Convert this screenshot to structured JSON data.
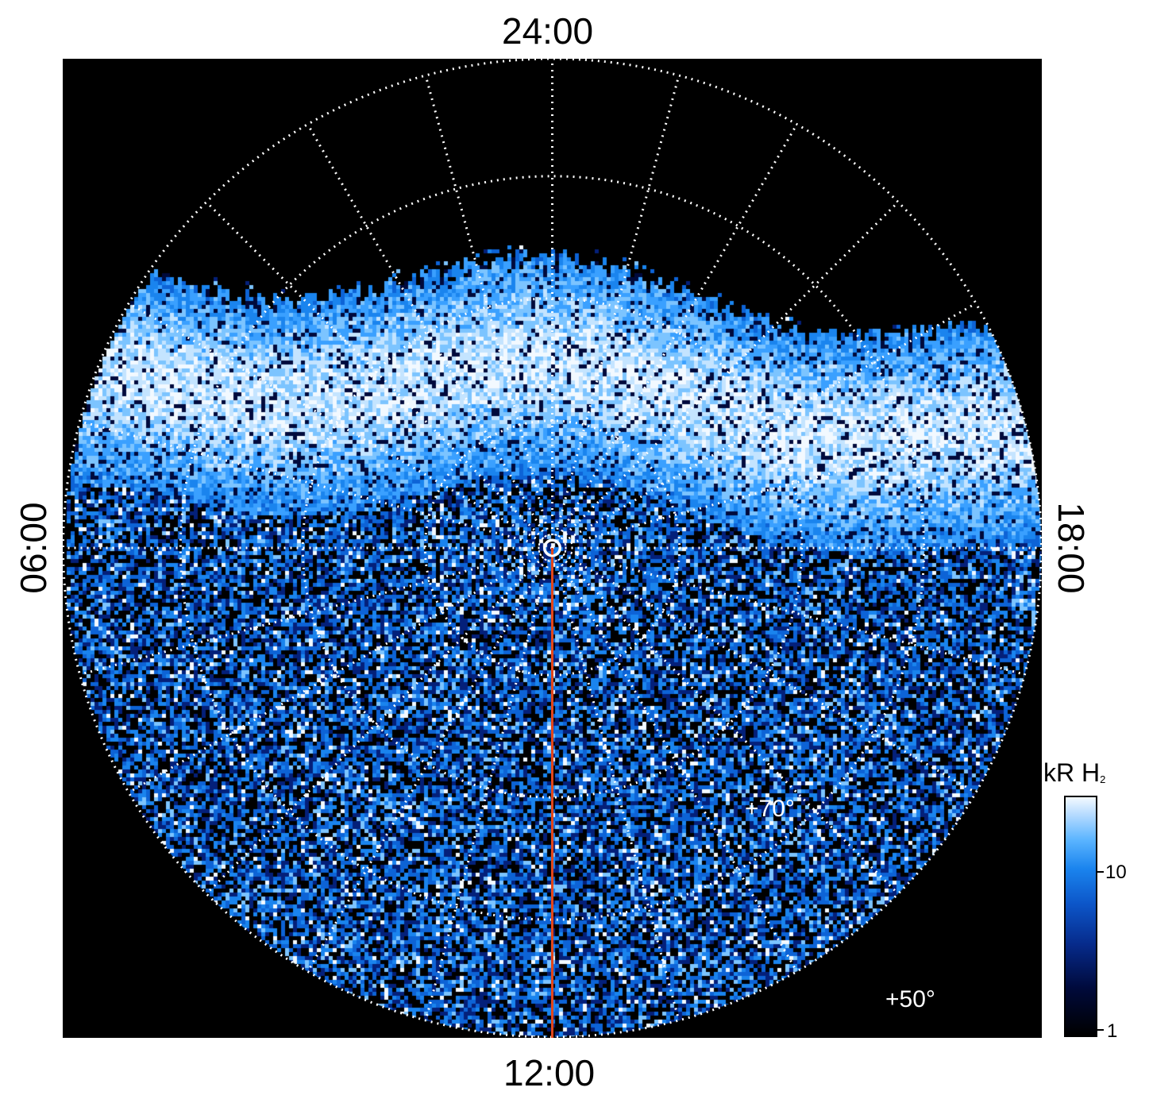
{
  "local_time_labels": {
    "top": "24:00",
    "bottom": "12:00",
    "left": "06:00",
    "right": "18:00"
  },
  "latitude_labels": {
    "lat_70": "+70°",
    "lat_50": "+50°"
  },
  "colorbar": {
    "title": "kR H",
    "title_subscript": "2",
    "ticks": [
      "10",
      "1"
    ],
    "range": [
      1,
      30
    ],
    "scale": "log",
    "colors": [
      "#000000",
      "#062a8a",
      "#1a84ee",
      "#b8dcff",
      "#f4faff"
    ]
  },
  "image": {
    "projection": "polar",
    "background": "#000000",
    "meridian_line_color": "#e3461a",
    "grid_color": "#ffffff"
  }
}
